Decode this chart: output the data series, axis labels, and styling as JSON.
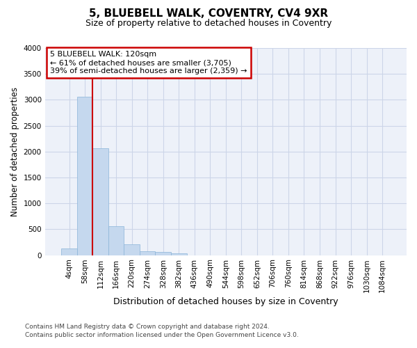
{
  "title": "5, BLUEBELL WALK, COVENTRY, CV4 9XR",
  "subtitle": "Size of property relative to detached houses in Coventry",
  "xlabel": "Distribution of detached houses by size in Coventry",
  "ylabel": "Number of detached properties",
  "bar_labels": [
    "4sqm",
    "58sqm",
    "112sqm",
    "166sqm",
    "220sqm",
    "274sqm",
    "328sqm",
    "382sqm",
    "436sqm",
    "490sqm",
    "544sqm",
    "598sqm",
    "652sqm",
    "706sqm",
    "760sqm",
    "814sqm",
    "868sqm",
    "922sqm",
    "976sqm",
    "1030sqm",
    "1084sqm"
  ],
  "bar_values": [
    130,
    3060,
    2070,
    555,
    210,
    75,
    55,
    40,
    0,
    0,
    0,
    0,
    0,
    0,
    0,
    0,
    0,
    0,
    0,
    0,
    0
  ],
  "bar_color": "#c5d8ee",
  "bar_edge_color": "#8ab4d8",
  "vline_color": "#cc0000",
  "vline_x": 1.5,
  "annotation_text": "5 BLUEBELL WALK: 120sqm\n← 61% of detached houses are smaller (3,705)\n39% of semi-detached houses are larger (2,359) →",
  "annotation_box_color": "#ffffff",
  "annotation_box_edge": "#cc0000",
  "ylim": [
    0,
    4000
  ],
  "yticks": [
    0,
    500,
    1000,
    1500,
    2000,
    2500,
    3000,
    3500,
    4000
  ],
  "grid_color": "#ccd5e8",
  "footer1": "Contains HM Land Registry data © Crown copyright and database right 2024.",
  "footer2": "Contains public sector information licensed under the Open Government Licence v3.0.",
  "bg_color": "#edf1f9",
  "title_fontsize": 11,
  "subtitle_fontsize": 9,
  "ylabel_fontsize": 8.5,
  "xlabel_fontsize": 9,
  "tick_fontsize": 7.5,
  "annotation_fontsize": 8,
  "footer_fontsize": 6.5
}
